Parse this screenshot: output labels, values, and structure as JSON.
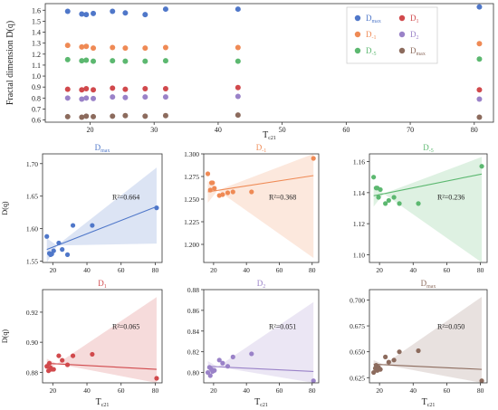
{
  "chart_data": [
    {
      "type": "scatter",
      "id": "top",
      "xlabel_main": "T",
      "xlabel_sub": "c21",
      "ylabel": "Fractal dimension D(q)",
      "xlim": [
        13,
        83
      ],
      "ylim": [
        0.58,
        1.66
      ],
      "xticks": [
        20,
        30,
        40,
        50,
        60,
        70,
        80
      ],
      "yticks": [
        0.6,
        0.7,
        0.8,
        0.9,
        1.0,
        1.1,
        1.2,
        1.3,
        1.4,
        1.5,
        1.6
      ],
      "legend_position": "top-right",
      "series": [
        {
          "name": "D",
          "sub": "max",
          "color": "#4f77c9",
          "x": [
            16.5,
            18.7,
            19.4,
            20.5,
            23.5,
            25.5,
            28.6,
            31.8,
            43.1,
            80.8
          ],
          "y": [
            1.59,
            1.565,
            1.56,
            1.57,
            1.59,
            1.575,
            1.56,
            1.61,
            1.61,
            1.63
          ]
        },
        {
          "name": "D",
          "sub": "-1",
          "color": "#ef8a55",
          "x": [
            16.5,
            18.7,
            19.4,
            20.5,
            23.5,
            25.5,
            28.6,
            31.8,
            43.1,
            80.8
          ],
          "y": [
            1.28,
            1.265,
            1.27,
            1.255,
            1.26,
            1.255,
            1.255,
            1.26,
            1.26,
            1.295
          ]
        },
        {
          "name": "D",
          "sub": "-5",
          "color": "#5cb870",
          "x": [
            16.5,
            18.7,
            19.4,
            20.5,
            23.5,
            25.5,
            28.6,
            31.8,
            43.1,
            80.8
          ],
          "y": [
            1.15,
            1.14,
            1.145,
            1.135,
            1.14,
            1.135,
            1.135,
            1.14,
            1.135,
            1.155
          ]
        },
        {
          "name": "D",
          "sub": "1",
          "color": "#d1494c",
          "x": [
            16.5,
            18.7,
            19.4,
            20.5,
            23.5,
            25.5,
            28.6,
            31.8,
            43.1,
            80.8
          ],
          "y": [
            0.88,
            0.875,
            0.885,
            0.875,
            0.89,
            0.88,
            0.885,
            0.885,
            0.895,
            0.875
          ]
        },
        {
          "name": "D",
          "sub": "2",
          "color": "#9a82c8",
          "x": [
            16.5,
            18.7,
            19.4,
            20.5,
            23.5,
            25.5,
            28.6,
            31.8,
            43.1,
            80.8
          ],
          "y": [
            0.8,
            0.79,
            0.8,
            0.795,
            0.81,
            0.805,
            0.81,
            0.81,
            0.815,
            0.79
          ]
        },
        {
          "name": "D",
          "sub": "max",
          "color": "#8c6b5d",
          "x": [
            16.5,
            18.7,
            19.4,
            20.5,
            23.5,
            25.5,
            28.6,
            31.8,
            43.1,
            80.8
          ],
          "y": [
            0.63,
            0.625,
            0.635,
            0.63,
            0.635,
            0.64,
            0.635,
            0.64,
            0.645,
            0.625
          ]
        }
      ]
    },
    {
      "type": "scatter",
      "id": "p1",
      "title": "D",
      "title_sub": "max",
      "color": "#4f77c9",
      "ylabel": "D(q)",
      "r2": "R²=0.664",
      "xticks": [
        20,
        40,
        60,
        80
      ],
      "yticks": [
        1.55,
        1.6,
        1.65,
        1.7
      ],
      "ytick_labels": [
        "1.55",
        "1.60",
        "1.65",
        "1.70"
      ],
      "xlim": [
        14,
        84
      ],
      "ylim": [
        1.548,
        1.715
      ],
      "x": [
        16.5,
        18.0,
        18.7,
        19.4,
        20.5,
        23.5,
        25.5,
        28.6,
        31.8,
        43.1,
        80.8
      ],
      "y": [
        1.588,
        1.562,
        1.56,
        1.561,
        1.566,
        1.578,
        1.568,
        1.56,
        1.605,
        1.605,
        1.632
      ],
      "fit": [
        1.568,
        1.634
      ],
      "band_lo": [
        1.585,
        1.577
      ],
      "band_hi": [
        1.548,
        1.694
      ]
    },
    {
      "type": "scatter",
      "id": "p2",
      "title": "D",
      "title_sub": "-1",
      "color": "#ef8a55",
      "r2": "R²=0.368",
      "xticks": [
        20,
        40,
        60,
        80
      ],
      "yticks": [
        1.2,
        1.225,
        1.25,
        1.275,
        1.3
      ],
      "ytick_labels": [
        "1.200",
        "1.225",
        "1.250",
        "1.275",
        "1.300"
      ],
      "xlim": [
        14,
        84
      ],
      "ylim": [
        1.18,
        1.3
      ],
      "x": [
        16.5,
        18.0,
        18.7,
        19.4,
        20.5,
        23.5,
        25.5,
        28.6,
        31.8,
        43.1,
        80.8
      ],
      "y": [
        1.278,
        1.26,
        1.268,
        1.268,
        1.262,
        1.254,
        1.255,
        1.257,
        1.258,
        1.258,
        1.295
      ],
      "fit": [
        1.258,
        1.276
      ],
      "band_lo": [
        1.27,
        1.185
      ],
      "band_hi": [
        1.246,
        1.3
      ]
    },
    {
      "type": "scatter",
      "id": "p3",
      "title": "D",
      "title_sub": "-5",
      "color": "#5cb870",
      "r2": "R²=0.236",
      "xticks": [
        20,
        40,
        60,
        80
      ],
      "yticks": [
        1.1,
        1.12,
        1.14,
        1.16
      ],
      "ytick_labels": [
        "1.10",
        "1.12",
        "1.14",
        "1.16"
      ],
      "xlim": [
        14,
        84
      ],
      "ylim": [
        1.095,
        1.165
      ],
      "x": [
        16.5,
        18.0,
        18.7,
        19.4,
        20.5,
        23.5,
        25.5,
        28.6,
        31.8,
        43.1,
        80.8
      ],
      "y": [
        1.15,
        1.143,
        1.143,
        1.137,
        1.142,
        1.133,
        1.135,
        1.137,
        1.133,
        1.133,
        1.157
      ],
      "fit": [
        1.138,
        1.152
      ],
      "band_lo": [
        1.144,
        1.095
      ],
      "band_hi": [
        1.131,
        1.163
      ]
    },
    {
      "type": "scatter",
      "id": "p4",
      "title": "D",
      "title_sub": "1",
      "color": "#d1494c",
      "ylabel": "D(q)",
      "r2": "R²=0.065",
      "xlabel_main": "T",
      "xlabel_sub": "c21",
      "xticks": [
        20,
        40,
        60,
        80
      ],
      "yticks": [
        0.88,
        0.9,
        0.92
      ],
      "ytick_labels": [
        "0.88",
        "0.90",
        "0.92"
      ],
      "xlim": [
        14,
        84
      ],
      "ylim": [
        0.873,
        0.935
      ],
      "x": [
        16.5,
        17.5,
        18.0,
        18.7,
        19.4,
        20.5,
        23.5,
        25.5,
        28.6,
        31.8,
        43.1,
        80.8
      ],
      "y": [
        0.884,
        0.881,
        0.886,
        0.883,
        0.882,
        0.882,
        0.891,
        0.888,
        0.885,
        0.891,
        0.892,
        0.876
      ],
      "fit": [
        0.886,
        0.882
      ],
      "band_lo": [
        0.889,
        0.873
      ],
      "band_hi": [
        0.882,
        0.93
      ]
    },
    {
      "type": "scatter",
      "id": "p5",
      "title": "D",
      "title_sub": "2",
      "color": "#9a82c8",
      "r2": "R²=0.051",
      "xlabel_main": "T",
      "xlabel_sub": "c21",
      "xticks": [
        20,
        40,
        60,
        80
      ],
      "yticks": [
        0.8,
        0.82,
        0.84,
        0.86,
        0.88
      ],
      "ytick_labels": [
        "0.80",
        "0.82",
        "0.84",
        "0.86",
        "0.88"
      ],
      "xlim": [
        14,
        84
      ],
      "ylim": [
        0.79,
        0.88
      ],
      "x": [
        16.5,
        17.5,
        18.0,
        18.7,
        19.4,
        20.5,
        23.5,
        25.5,
        28.6,
        31.8,
        43.1,
        80.8
      ],
      "y": [
        0.8,
        0.805,
        0.797,
        0.803,
        0.801,
        0.802,
        0.812,
        0.809,
        0.806,
        0.815,
        0.818,
        0.792
      ],
      "fit": [
        0.806,
        0.801
      ],
      "band_lo": [
        0.811,
        0.79
      ],
      "band_hi": [
        0.801,
        0.868
      ]
    },
    {
      "type": "scatter",
      "id": "p6",
      "title": "D",
      "title_sub": "max",
      "color": "#8c6b5d",
      "r2": "R²=0.050",
      "xlabel_main": "T",
      "xlabel_sub": "c21",
      "xticks": [
        20,
        40,
        60,
        80
      ],
      "yticks": [
        0.625,
        0.65,
        0.675,
        0.7
      ],
      "ytick_labels": [
        "0.625",
        "0.650",
        "0.675",
        "0.700"
      ],
      "xlim": [
        14,
        84
      ],
      "ylim": [
        0.62,
        0.71
      ],
      "x": [
        16.5,
        17.5,
        18.0,
        18.7,
        19.4,
        20.5,
        23.5,
        25.5,
        28.6,
        31.8,
        43.1,
        80.8
      ],
      "y": [
        0.63,
        0.634,
        0.637,
        0.632,
        0.635,
        0.633,
        0.645,
        0.64,
        0.642,
        0.65,
        0.651,
        0.622
      ],
      "fit": [
        0.638,
        0.633
      ],
      "band_lo": [
        0.642,
        0.62
      ],
      "band_hi": [
        0.634,
        0.703
      ]
    }
  ]
}
